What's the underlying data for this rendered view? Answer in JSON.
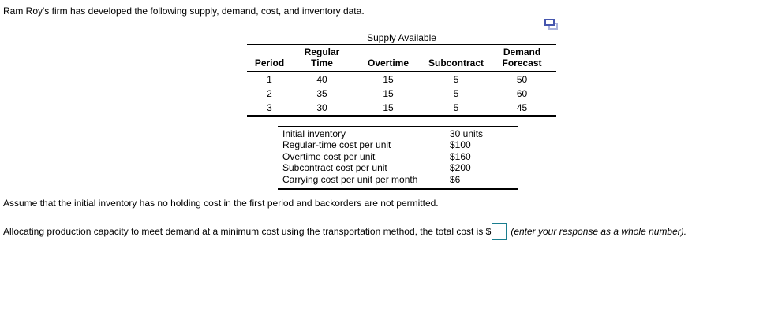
{
  "question": {
    "intro": "Ram Roy's firm has developed the following supply, demand, cost, and inventory data.",
    "assumption": "Assume that the initial inventory has no holding cost in the first period and backorders are not permitted.",
    "prompt_before_input": "Allocating production capacity to meet demand at a minimum cost using the transportation method, the total cost is $",
    "prompt_after_input": "(enter your response as a whole number).",
    "answer_value": "",
    "popout_icon": "overlapping-windows-icon",
    "answer_box_border_color": "#1a7d8e",
    "icon_front_color": "#4556ae",
    "icon_back_color": "#a9b2dc"
  },
  "supply_table": {
    "caption": "Supply Available",
    "columns": [
      "Period",
      "Regular Time",
      "Overtime",
      "Subcontract",
      "Demand Forecast"
    ],
    "rows": [
      [
        "1",
        "40",
        "15",
        "5",
        "50"
      ],
      [
        "2",
        "35",
        "15",
        "5",
        "60"
      ],
      [
        "3",
        "30",
        "15",
        "5",
        "45"
      ]
    ]
  },
  "cost_table": {
    "rows": [
      {
        "label": "Initial inventory",
        "value": "30 units"
      },
      {
        "label": "Regular-time cost per unit",
        "value": "$100"
      },
      {
        "label": "Overtime cost per unit",
        "value": "$160"
      },
      {
        "label": "Subcontract cost per unit",
        "value": "$200"
      },
      {
        "label": "Carrying cost per unit per month",
        "value": "$6"
      }
    ]
  }
}
